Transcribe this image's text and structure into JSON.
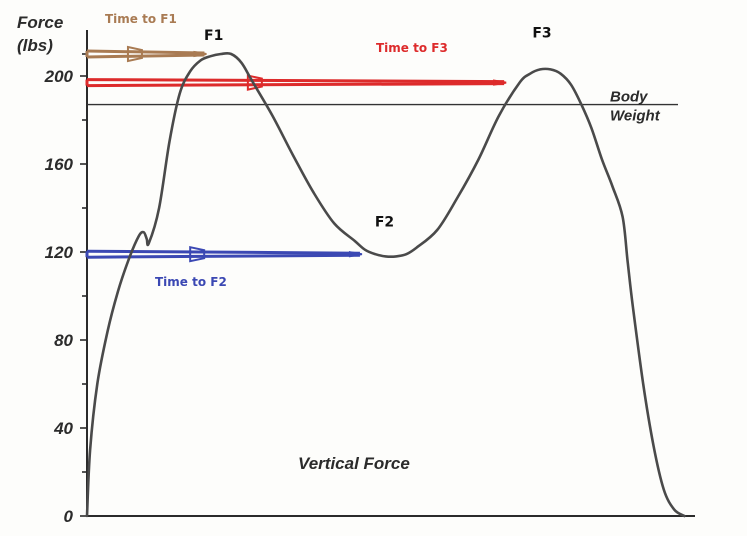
{
  "chart_data": {
    "type": "line",
    "title": "Vertical Force",
    "ylabel": "Force (lbs)",
    "ylabel_lines": [
      "Force",
      "(lbs)"
    ],
    "xlabel": "",
    "ylim": [
      0,
      212
    ],
    "yticks": [
      0,
      40,
      80,
      120,
      160,
      200
    ],
    "grid": false,
    "series": [
      {
        "name": "",
        "color": "#4a4a4a",
        "points": [
          [
            0,
            0
          ],
          [
            0.3,
            30
          ],
          [
            1,
            60
          ],
          [
            2,
            84
          ],
          [
            3,
            102
          ],
          [
            4,
            116
          ],
          [
            5,
            127
          ],
          [
            5.5,
            129
          ],
          [
            5.8,
            126
          ],
          [
            6,
            124
          ],
          [
            7,
            140
          ],
          [
            8,
            170
          ],
          [
            9,
            192
          ],
          [
            10,
            202
          ],
          [
            11,
            207
          ],
          [
            12,
            209
          ],
          [
            13,
            210
          ],
          [
            14,
            210
          ],
          [
            15,
            206
          ],
          [
            16,
            198
          ],
          [
            18,
            182
          ],
          [
            20,
            164
          ],
          [
            22,
            147
          ],
          [
            24,
            133
          ],
          [
            26,
            125
          ],
          [
            27,
            121
          ],
          [
            28,
            119
          ],
          [
            29,
            118
          ],
          [
            30,
            118
          ],
          [
            31,
            119
          ],
          [
            32,
            122
          ],
          [
            34,
            130
          ],
          [
            36,
            145
          ],
          [
            38,
            162
          ],
          [
            40,
            182
          ],
          [
            42,
            197
          ],
          [
            43,
            201
          ],
          [
            44,
            203
          ],
          [
            45,
            203
          ],
          [
            46,
            201
          ],
          [
            47,
            196
          ],
          [
            48,
            187
          ],
          [
            49,
            176
          ],
          [
            50,
            162
          ],
          [
            51,
            150
          ],
          [
            52,
            136
          ],
          [
            52.5,
            115
          ],
          [
            53,
            95
          ],
          [
            54,
            60
          ],
          [
            55,
            32
          ],
          [
            56,
            12
          ],
          [
            57,
            3
          ],
          [
            58,
            0
          ]
        ]
      }
    ],
    "reference_lines": [
      {
        "label_lines": [
          "Body",
          "Weight"
        ],
        "y": 187,
        "color": "#333333"
      }
    ],
    "peaks": [
      {
        "label": "F1",
        "x": 13.5,
        "y": 210
      },
      {
        "label": "F2",
        "x": 29.5,
        "y": 118
      },
      {
        "label": "F3",
        "x": 44.5,
        "y": 203
      }
    ],
    "annotations": [
      {
        "label": "Time to F1",
        "color": "#a97b53",
        "y": 210,
        "x_end": 11.4
      },
      {
        "label": "Time to F3",
        "color": "#dd2b2b",
        "y": 197,
        "x_end": 40.5
      },
      {
        "label": "Time to F2",
        "color": "#3b48b3",
        "y": 119,
        "x_end": 26.5
      }
    ]
  }
}
